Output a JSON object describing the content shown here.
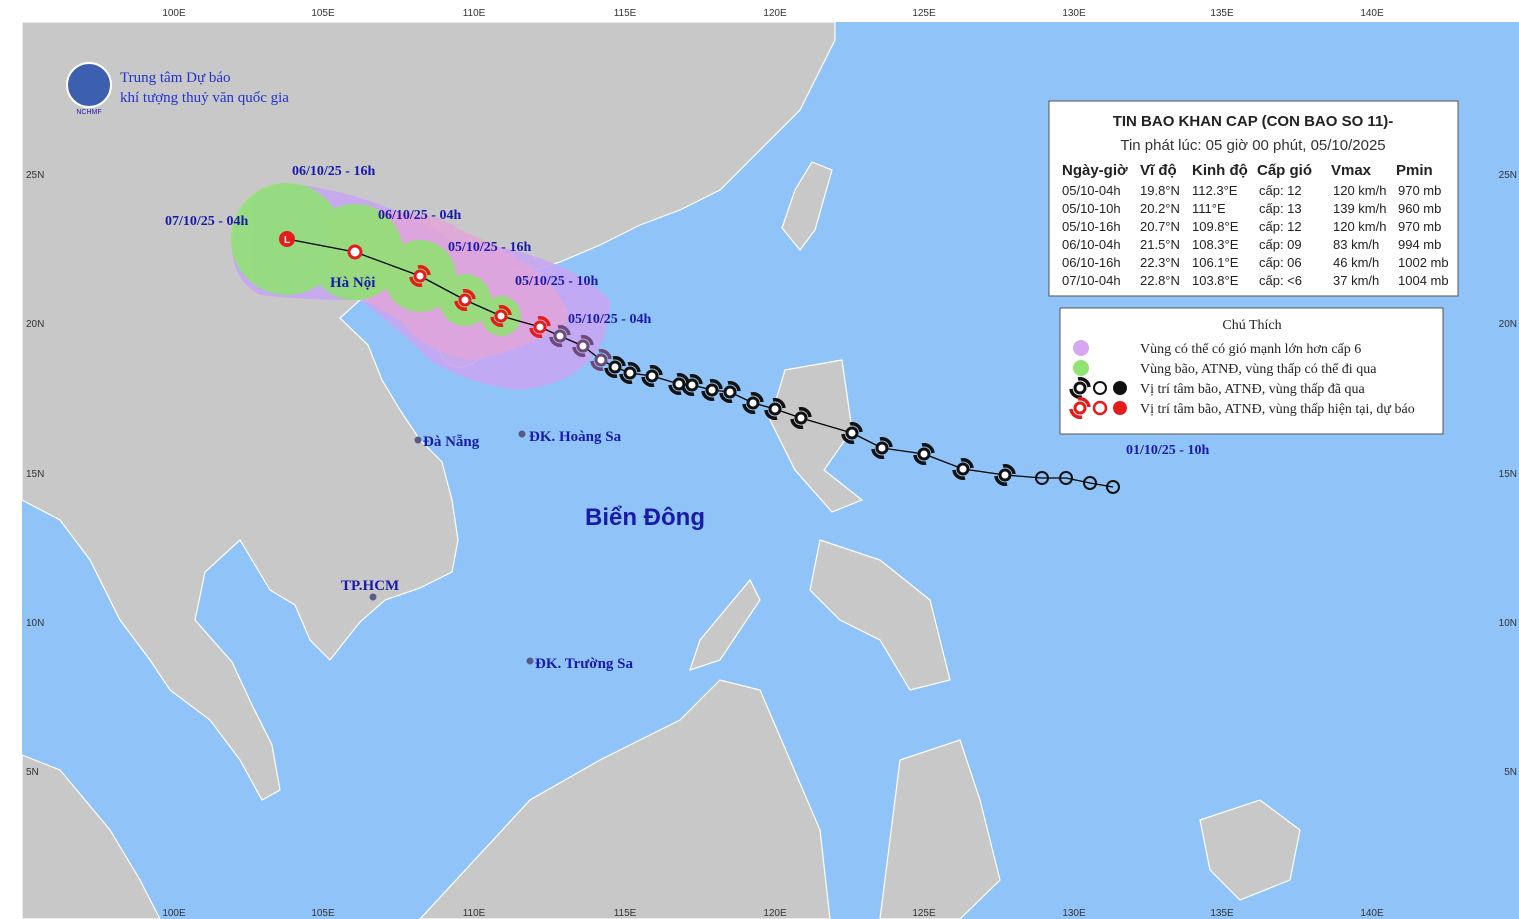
{
  "header": {
    "org_line1": "Trung tâm Dự báo",
    "org_line2": "khí tượng thuỷ văn quốc gia",
    "logo_text": "NCHMF"
  },
  "axes": {
    "lon": [
      "100E",
      "105E",
      "110E",
      "115E",
      "120E",
      "125E",
      "130E",
      "135E",
      "140E"
    ],
    "lat": [
      "25N",
      "20N",
      "15N",
      "10N",
      "5N"
    ]
  },
  "bulletin": {
    "title": "TIN BAO KHAN CAP (CON BAO SO 11)-",
    "issued": "Tin phát lúc: 05 giờ 00 phút, 05/10/2025",
    "columns": [
      "Ngày-giờ",
      "Vĩ độ",
      "Kinh độ",
      "Cấp gió",
      "Vmax",
      "Pmin"
    ],
    "rows": [
      [
        "05/10-04h",
        "19.8°N",
        "112.3°E",
        "cấp: 12",
        "120 km/h",
        "970 mb"
      ],
      [
        "05/10-10h",
        "20.2°N",
        "111°E",
        "cấp: 13",
        "139 km/h",
        "960 mb"
      ],
      [
        "05/10-16h",
        "20.7°N",
        "109.8°E",
        "cấp: 12",
        "120 km/h",
        "970 mb"
      ],
      [
        "06/10-04h",
        "21.5°N",
        "108.3°E",
        "cấp: 09",
        "83 km/h",
        "994 mb"
      ],
      [
        "06/10-16h",
        "22.3°N",
        "106.1°E",
        "cấp: 06",
        "46 km/h",
        "1002 mb"
      ],
      [
        "07/10-04h",
        "22.8°N",
        "103.8°E",
        "cấp: <6",
        "37 km/h",
        "1004 mb"
      ]
    ]
  },
  "legend": {
    "title": "Chú Thích",
    "items": [
      "Vùng có thể có gió mạnh lớn hơn cấp 6",
      "Vùng bão, ATNĐ, vùng thấp có thể đi qua",
      "Vị trí tâm bão, ATNĐ, vùng thấp đã qua",
      "Vị trí tâm bão, ATNĐ, vùng thấp hiện tại, dự báo"
    ]
  },
  "track_labels": [
    "06/10/25 - 16h",
    "07/10/25 - 04h",
    "06/10/25 - 04h",
    "05/10/25 - 16h",
    "05/10/25 - 10h",
    "05/10/25 - 04h",
    "01/10/25 - 10h"
  ],
  "places": [
    "Hà Nội",
    "Đà Nẵng",
    "ĐK. Hoàng Sa",
    "TP.HCM",
    "ĐK. Trường Sa"
  ],
  "sea_label": "Biển Đông"
}
